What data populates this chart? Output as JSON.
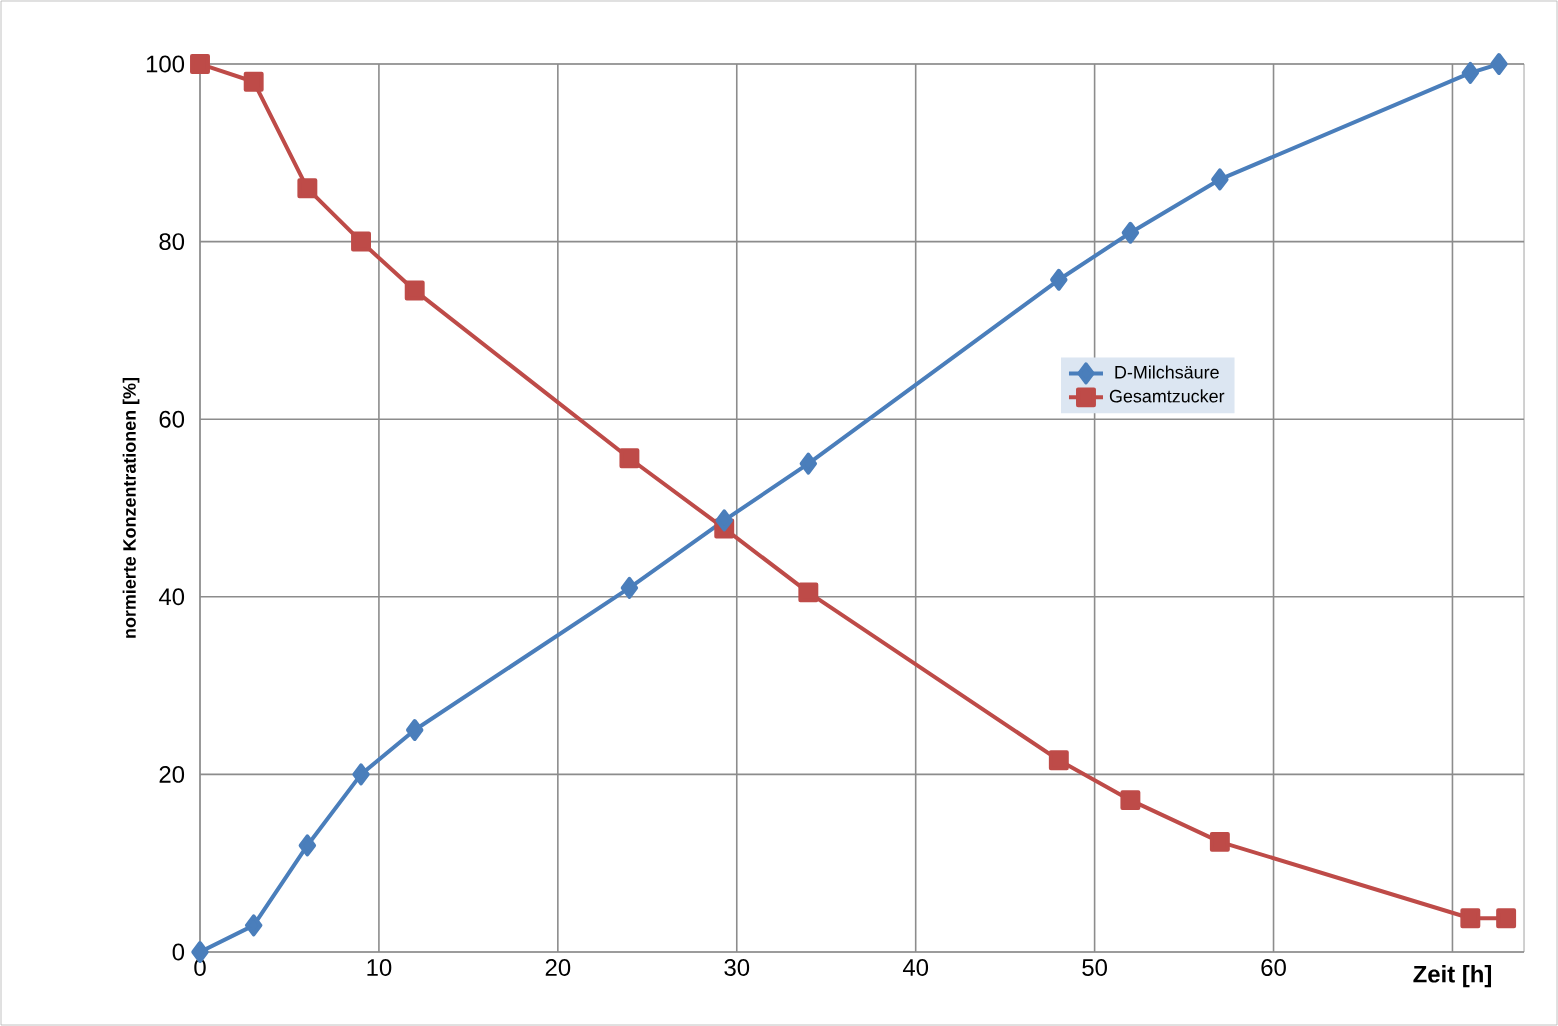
{
  "chart_data": {
    "type": "line",
    "xlabel": "Zeit [h]",
    "ylabel": "normierte Konzentrationen [%]",
    "xlim": [
      0,
      74
    ],
    "xticks": [
      0,
      10,
      20,
      30,
      40,
      50,
      60,
      {
        "value": 70,
        "label": null
      }
    ],
    "ylim": [
      0,
      100
    ],
    "yticks": [
      0,
      20,
      40,
      60,
      80,
      100
    ],
    "grid": true,
    "legend": "right",
    "line_style": "solid",
    "series": [
      {
        "name": "D-Milchsäure",
        "color": "#4a7ebb",
        "marker": "diamond",
        "x": [
          0,
          3,
          6,
          9,
          12,
          24,
          29.3,
          34,
          48,
          52,
          57,
          71,
          72.6
        ],
        "values": [
          0,
          3,
          12,
          20,
          25,
          41,
          48.6,
          55,
          75.7,
          81,
          87,
          99,
          100
        ]
      },
      {
        "name": "Gesamtzucker",
        "color": "#be4b48",
        "marker": "square",
        "x": [
          0,
          3,
          6,
          9,
          12,
          24,
          29.3,
          34,
          48,
          52,
          57,
          71,
          73
        ],
        "values": [
          100,
          98,
          86,
          80,
          74.5,
          55.6,
          47.7,
          40.5,
          21.6,
          17.1,
          12.4,
          3.8,
          3.8
        ]
      }
    ]
  }
}
